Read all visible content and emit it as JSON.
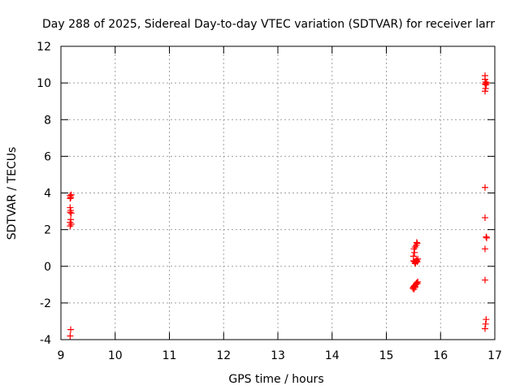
{
  "chart_data": {
    "type": "scatter",
    "title": "Day 288 of 2025, Sidereal Day-to-day VTEC variation (SDTVAR) for receiver larr",
    "xlabel": "GPS time / hours",
    "ylabel": "SDTVAR / TECUs",
    "xlim": [
      9,
      17
    ],
    "ylim": [
      -4,
      12
    ],
    "xticks": [
      9,
      10,
      11,
      12,
      13,
      14,
      15,
      16,
      17
    ],
    "yticks": [
      -4,
      -2,
      0,
      2,
      4,
      6,
      8,
      10,
      12
    ],
    "grid": true,
    "marker": "+",
    "marker_color": "#ff0000",
    "series": [
      {
        "points": [
          [
            9.17,
            3.85
          ],
          [
            9.18,
            3.75
          ],
          [
            9.19,
            3.9
          ],
          [
            9.17,
            3.7
          ],
          [
            9.17,
            3.2
          ],
          [
            9.18,
            3.05
          ],
          [
            9.19,
            2.9
          ],
          [
            9.17,
            2.95
          ],
          [
            9.18,
            2.55
          ],
          [
            9.17,
            2.4
          ],
          [
            9.19,
            2.3
          ],
          [
            9.17,
            2.2
          ],
          [
            9.18,
            -3.45
          ],
          [
            9.17,
            -3.8
          ],
          [
            15.51,
            0.95
          ],
          [
            15.52,
            0.75
          ],
          [
            15.5,
            0.55
          ],
          [
            15.53,
            1.05
          ],
          [
            15.56,
            1.3
          ],
          [
            15.57,
            1.25
          ],
          [
            15.55,
            1.15
          ],
          [
            15.5,
            0.3
          ],
          [
            15.52,
            0.25
          ],
          [
            15.54,
            0.2
          ],
          [
            15.55,
            0.35
          ],
          [
            15.56,
            0.3
          ],
          [
            15.58,
            0.4
          ],
          [
            15.53,
            0.15
          ],
          [
            15.57,
            0.25
          ],
          [
            15.49,
            -1.2
          ],
          [
            15.5,
            -1.15
          ],
          [
            15.51,
            -1.1
          ],
          [
            15.52,
            -1.05
          ],
          [
            15.53,
            -1.1
          ],
          [
            15.54,
            -1.0
          ],
          [
            15.55,
            -0.95
          ],
          [
            15.56,
            -0.9
          ],
          [
            15.57,
            -0.95
          ],
          [
            15.58,
            -0.85
          ],
          [
            15.51,
            -1.25
          ],
          [
            15.53,
            -1.15
          ],
          [
            16.82,
            10.4
          ],
          [
            16.82,
            10.2
          ],
          [
            16.83,
            10.05
          ],
          [
            16.82,
            9.95
          ],
          [
            16.84,
            9.9
          ],
          [
            16.83,
            9.7
          ],
          [
            16.82,
            9.55
          ],
          [
            16.85,
            10.0
          ],
          [
            16.82,
            4.3
          ],
          [
            16.82,
            2.65
          ],
          [
            16.84,
            1.6
          ],
          [
            16.85,
            1.55
          ],
          [
            16.82,
            0.95
          ],
          [
            16.82,
            -0.75
          ],
          [
            16.84,
            -2.9
          ],
          [
            16.83,
            -3.15
          ],
          [
            16.82,
            -3.4
          ]
        ]
      }
    ]
  }
}
